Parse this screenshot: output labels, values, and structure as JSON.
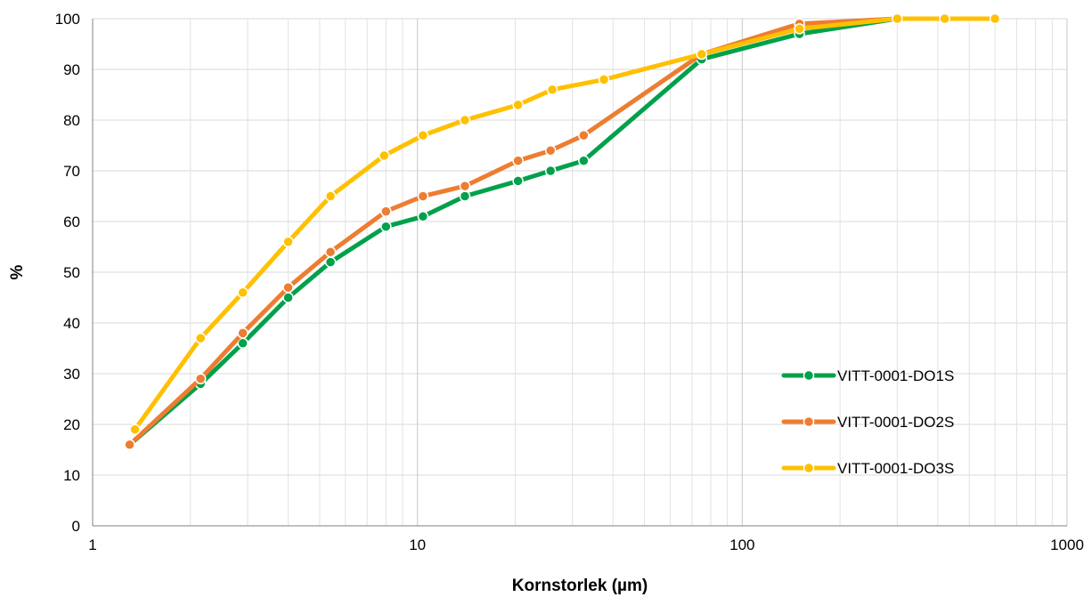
{
  "chart_data": {
    "type": "line",
    "title": "",
    "xlabel": "Kornstorlek (µm)",
    "ylabel": "%",
    "x_scale": "log",
    "xlim": [
      1,
      1000
    ],
    "ylim": [
      0,
      100
    ],
    "x_ticks": [
      1,
      10,
      100,
      1000
    ],
    "x_tick_labels": [
      "1",
      "10",
      "100",
      "1000"
    ],
    "y_ticks": [
      0,
      10,
      20,
      30,
      40,
      50,
      60,
      70,
      80,
      90,
      100
    ],
    "y_tick_labels": [
      "0",
      "10",
      "20",
      "30",
      "40",
      "50",
      "60",
      "70",
      "80",
      "90",
      "100"
    ],
    "grid": true,
    "legend_position": "bottom-right",
    "series": [
      {
        "name": "VITT-0001-DO1S",
        "color": "#00A14B",
        "x": [
          1.3,
          2.15,
          2.9,
          4.0,
          5.4,
          8.0,
          10.4,
          14.0,
          20.4,
          25.7,
          32.5,
          75,
          150,
          300,
          420,
          600
        ],
        "y": [
          16,
          28,
          36,
          45,
          52,
          59,
          61,
          65,
          68,
          70,
          72,
          92,
          97,
          100,
          100,
          100
        ]
      },
      {
        "name": "VITT-0001-DO2S",
        "color": "#ED7D31",
        "x": [
          1.3,
          2.15,
          2.9,
          4.0,
          5.4,
          8.0,
          10.4,
          14.0,
          20.4,
          25.7,
          32.5,
          75,
          150,
          300,
          420,
          600
        ],
        "y": [
          16,
          29,
          38,
          47,
          54,
          62,
          65,
          67,
          72,
          74,
          77,
          93,
          99,
          100,
          100,
          100
        ]
      },
      {
        "name": "VITT-0001-DO3S",
        "color": "#FFC000",
        "x": [
          1.35,
          2.15,
          2.9,
          4.0,
          5.4,
          7.9,
          10.4,
          14.0,
          20.4,
          26.0,
          37.5,
          75,
          150,
          300,
          420,
          600
        ],
        "y": [
          19,
          37,
          46,
          56,
          65,
          73,
          77,
          80,
          83,
          86,
          88,
          93,
          98,
          100,
          100,
          100
        ]
      }
    ]
  }
}
